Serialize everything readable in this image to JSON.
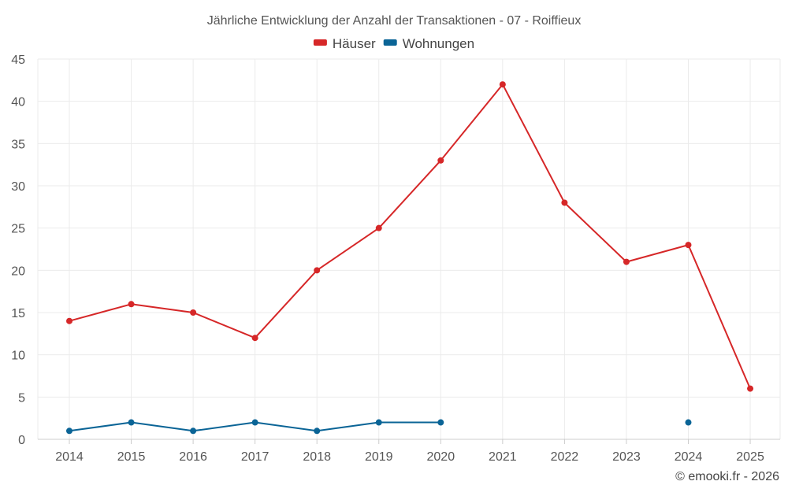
{
  "chart_data": {
    "type": "line",
    "title": "Jährliche Entwicklung der Anzahl der Transaktionen - 07 - Roiffieux",
    "categories": [
      "2014",
      "2015",
      "2016",
      "2017",
      "2018",
      "2019",
      "2020",
      "2021",
      "2022",
      "2023",
      "2024",
      "2025"
    ],
    "series": [
      {
        "name": "Häuser",
        "color": "#d62728",
        "values": [
          14,
          16,
          15,
          12,
          20,
          25,
          33,
          42,
          28,
          21,
          23,
          6
        ]
      },
      {
        "name": "Wohnungen",
        "color": "#0a6496",
        "values": [
          1,
          2,
          1,
          2,
          1,
          2,
          2,
          null,
          null,
          null,
          2,
          null
        ]
      }
    ],
    "y_ticks": [
      "0",
      "5",
      "10",
      "15",
      "20",
      "25",
      "30",
      "35",
      "40",
      "45"
    ],
    "ylim": [
      0,
      45
    ],
    "xlabel": "",
    "ylabel": "",
    "grid": true,
    "legend_position": "top-center",
    "credit": "© emooki.fr - 2026"
  }
}
